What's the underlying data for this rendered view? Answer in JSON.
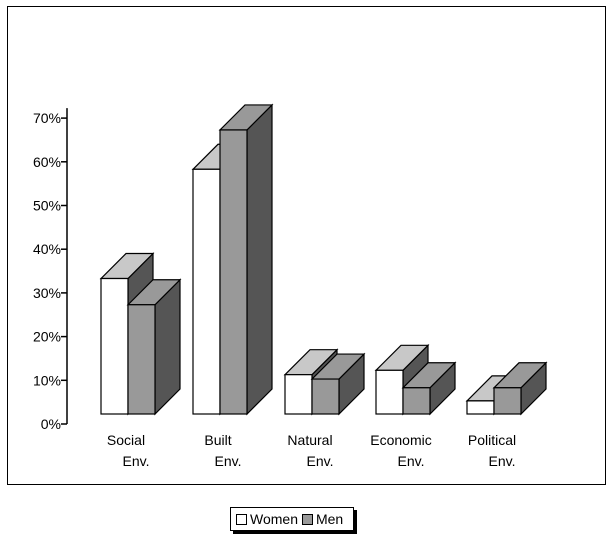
{
  "chart_data": {
    "type": "bar",
    "style": "3d-clustered-column",
    "categories": [
      [
        "Social",
        "Env."
      ],
      [
        "Built",
        "Env."
      ],
      [
        "Natural",
        "Env."
      ],
      [
        "Economic",
        "Env."
      ],
      [
        "Political",
        "Env."
      ]
    ],
    "series": [
      {
        "name": "Women",
        "values": [
          0.31,
          0.56,
          0.09,
          0.1,
          0.03
        ],
        "color": "#ffffff"
      },
      {
        "name": "Men",
        "values": [
          0.25,
          0.65,
          0.08,
          0.06,
          0.06
        ],
        "color": "#999999"
      }
    ],
    "yticks": [
      "0%",
      "10%",
      "20%",
      "30%",
      "40%",
      "50%",
      "60%",
      "70%"
    ],
    "ylim": [
      0,
      0.7
    ],
    "grid": false,
    "legend_position": "bottom-center",
    "colors": {
      "top_women": "#c8c8c8",
      "top_men": "#999999",
      "side": "#555555",
      "front_men": "#999999"
    }
  }
}
